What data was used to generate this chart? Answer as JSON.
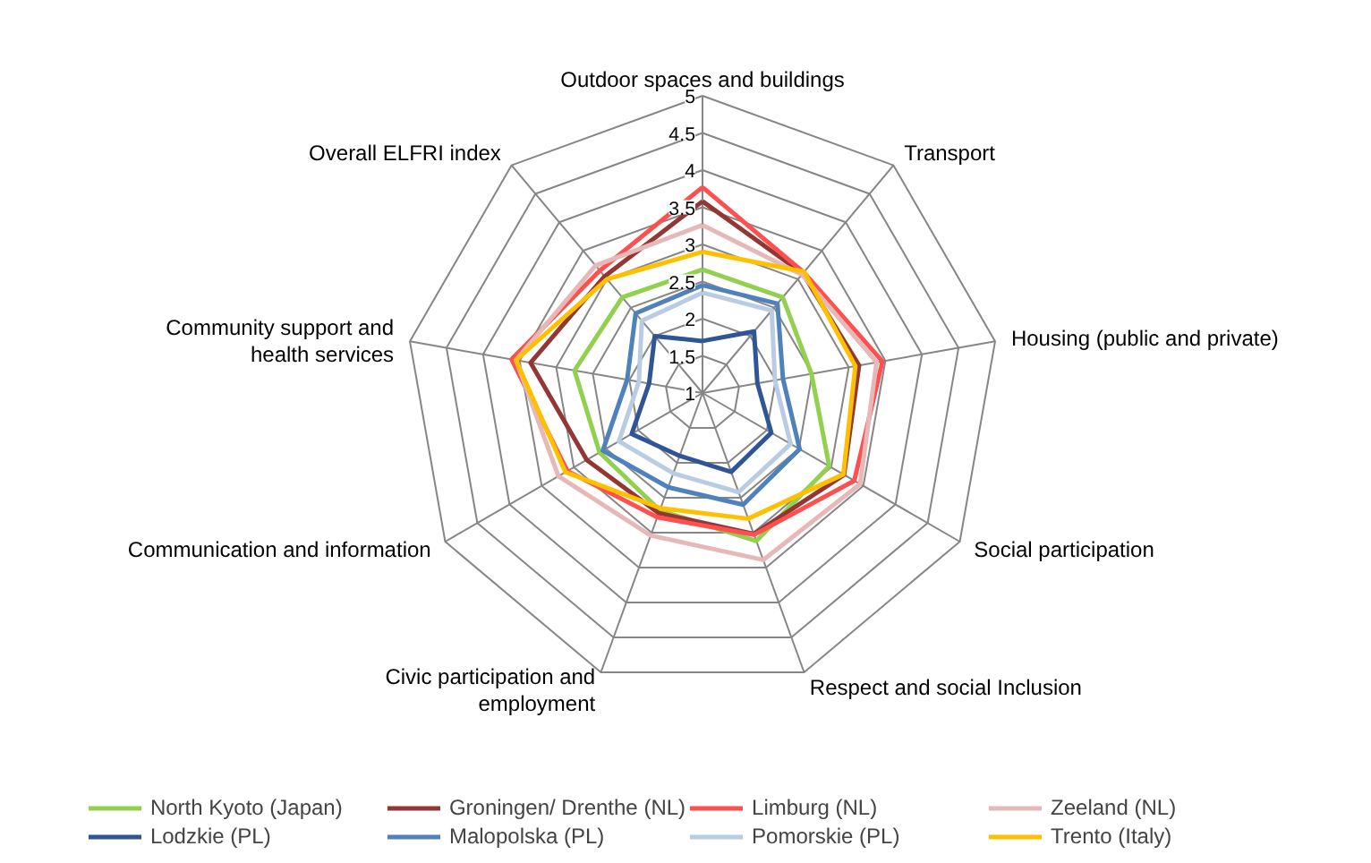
{
  "chart_data": {
    "type": "radar",
    "categories": [
      "Outdoor spaces and buildings",
      "Transport",
      "Housing (public and private)",
      "Social participation",
      "Respect and social Inclusion",
      "Civic participation and employment",
      "Communication and information",
      "Community support and health services",
      "Overall ELFRI index"
    ],
    "ylim": [
      1,
      5
    ],
    "yticks": [
      1,
      1.5,
      2,
      2.5,
      3,
      3.5,
      4,
      4.5,
      5
    ],
    "grid": true,
    "legend": "bottom",
    "series": [
      {
        "name": "North Kyoto (Japan)",
        "color": "#92d050",
        "values": [
          2.66,
          2.68,
          2.49,
          2.97,
          3.12,
          2.68,
          2.6,
          2.75,
          2.68
        ]
      },
      {
        "name": "Groningen/ Drenthe (NL)",
        "color": "#943634",
        "values": [
          3.58,
          3.1,
          3.14,
          3.2,
          3.02,
          2.72,
          2.8,
          3.35,
          3.05
        ]
      },
      {
        "name": "Limburg (NL)",
        "color": "#ff5050",
        "values": [
          3.77,
          3.12,
          3.46,
          3.36,
          3.03,
          2.78,
          3.1,
          3.61,
          3.15
        ]
      },
      {
        "name": "Zeeland (NL)",
        "color": "#e6b8b7",
        "values": [
          3.26,
          3.08,
          3.38,
          3.45,
          3.39,
          3.04,
          3.24,
          3.55,
          3.24
        ]
      },
      {
        "name": "Lodzkie (PL)",
        "color": "#2f5597",
        "values": [
          1.7,
          2.08,
          1.75,
          2.07,
          2.13,
          1.9,
          2.1,
          1.73,
          2.0
        ]
      },
      {
        "name": "Malopolska (PL)",
        "color": "#4f81bd",
        "values": [
          2.45,
          2.57,
          2.1,
          2.51,
          2.6,
          2.35,
          2.55,
          2.03,
          2.4
        ]
      },
      {
        "name": "Pomorskie (PL)",
        "color": "#b8cce4",
        "values": [
          2.35,
          2.45,
          1.99,
          2.37,
          2.42,
          2.15,
          2.3,
          1.87,
          2.27
        ]
      },
      {
        "name": "Trento (Italy)",
        "color": "#ffc000",
        "values": [
          2.9,
          3.13,
          3.09,
          3.19,
          2.8,
          2.65,
          3.13,
          3.55,
          3.0
        ]
      }
    ]
  }
}
